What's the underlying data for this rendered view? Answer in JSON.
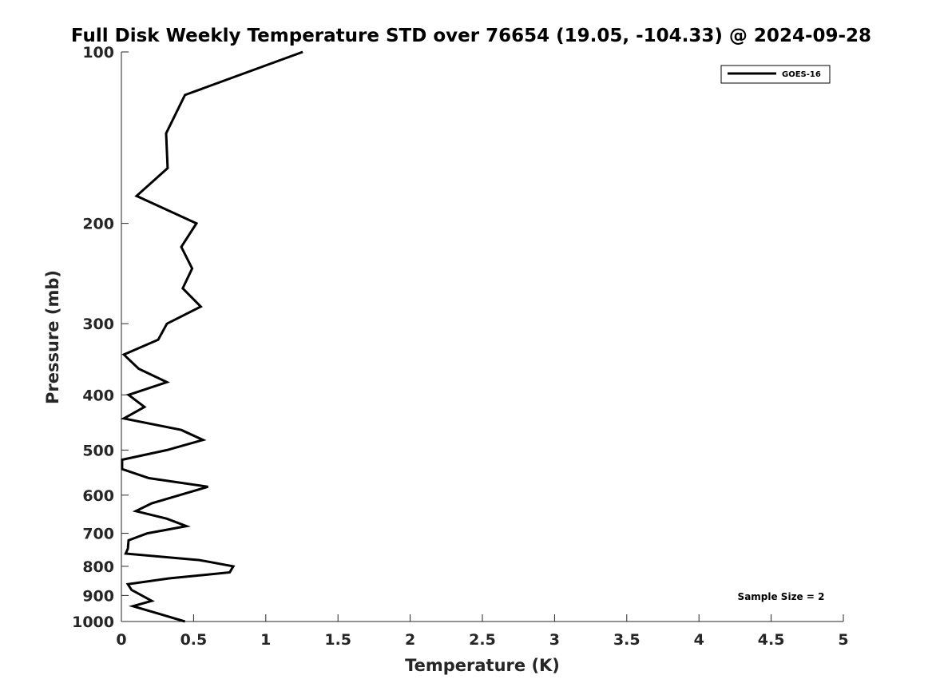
{
  "chart_data": {
    "type": "line",
    "title": "Full Disk Weekly Temperature STD over 76654 (19.05, -104.33) @ 2024-09-28",
    "xlabel": "Temperature (K)",
    "ylabel": "Pressure (mb)",
    "xlim": [
      0,
      5
    ],
    "ylim": [
      100,
      1000
    ],
    "yscale": "log",
    "y_reversed": true,
    "grid": false,
    "xticks": [
      0,
      0.5,
      1,
      1.5,
      2,
      2.5,
      3,
      3.5,
      4,
      4.5,
      5
    ],
    "xtick_labels": [
      "0",
      "0.5",
      "1",
      "1.5",
      "2",
      "2.5",
      "3",
      "3.5",
      "4",
      "4.5",
      "5"
    ],
    "yticks": [
      100,
      200,
      300,
      400,
      500,
      600,
      700,
      800,
      900,
      1000
    ],
    "ytick_labels": [
      "100",
      "200",
      "300",
      "400",
      "500",
      "600",
      "700",
      "800",
      "900",
      "1000"
    ],
    "legend": {
      "placement": "top-right",
      "entries": [
        "GOES-16"
      ]
    },
    "annotation": "Sample Size = 2",
    "series": [
      {
        "name": "GOES-16",
        "color": "#000000",
        "temperature": [
          1.256,
          0.44,
          0.31,
          0.32,
          0.105,
          0.52,
          0.415,
          0.49,
          0.425,
          0.55,
          0.315,
          0.255,
          0.017,
          0.12,
          0.315,
          0.05,
          0.16,
          0.017,
          0.415,
          0.565,
          0.315,
          0.005,
          0.005,
          0.19,
          0.6,
          0.21,
          0.1,
          0.315,
          0.45,
          0.18,
          0.05,
          0.045,
          0.03,
          0.54,
          0.775,
          0.75,
          0.33,
          0.045,
          0.07,
          0.21,
          0.08,
          0.265,
          0.44
        ],
        "pressure": [
          100,
          119,
          139,
          160,
          179,
          200,
          220,
          240,
          260,
          280,
          300,
          320,
          340,
          360,
          380,
          400,
          420,
          440,
          461,
          480,
          500,
          520,
          540,
          560,
          580,
          620,
          640,
          660,
          680,
          700,
          720,
          745,
          760,
          780,
          800,
          820,
          840,
          860,
          880,
          920,
          940,
          970,
          1000
        ]
      }
    ]
  }
}
